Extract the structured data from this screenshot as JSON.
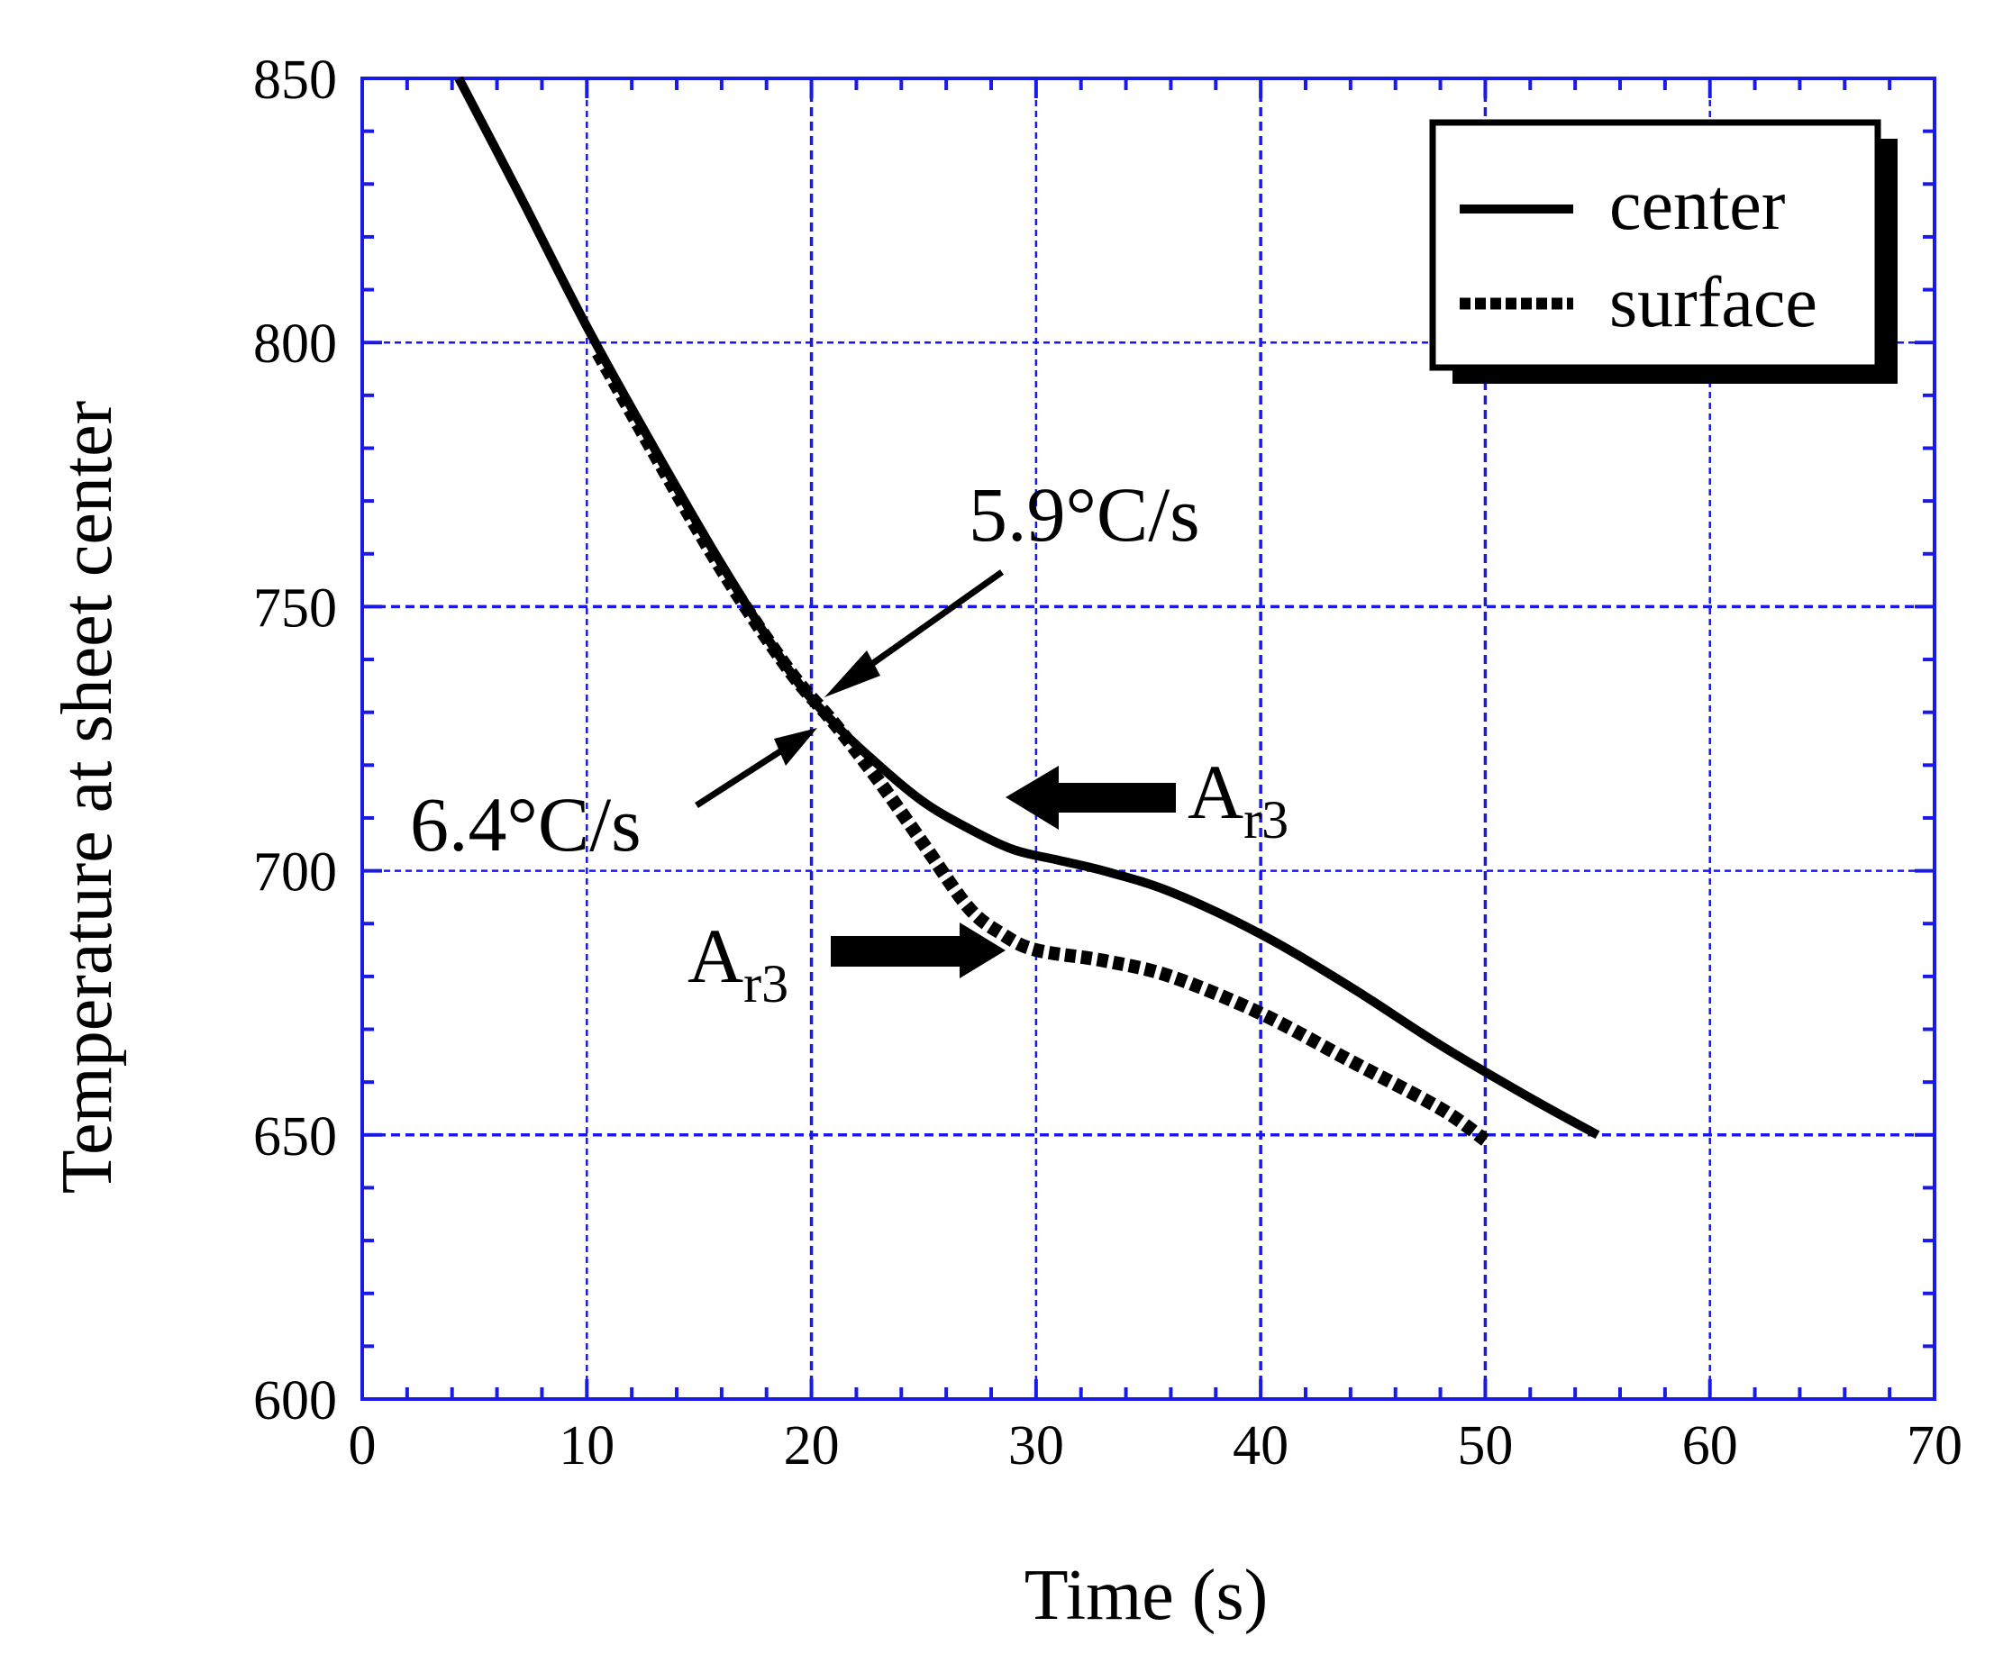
{
  "chart_data": {
    "type": "line",
    "xlabel": "Time (s)",
    "ylabel": "Temperature at sheet center",
    "xlim": [
      0,
      70
    ],
    "ylim": [
      600,
      850
    ],
    "xticks": [
      0,
      10,
      20,
      30,
      40,
      50,
      60,
      70
    ],
    "yticks": [
      600,
      650,
      700,
      750,
      800,
      850
    ],
    "xtick_labels": [
      "0",
      "10",
      "20",
      "30",
      "40",
      "50",
      "60",
      "70"
    ],
    "ytick_labels": [
      "600",
      "650",
      "700",
      "750",
      "800",
      "850"
    ],
    "grid": true,
    "legend_position": "top-right",
    "series": [
      {
        "name": "center",
        "style": "solid",
        "color": "#000000",
        "x": [
          4.3,
          7,
          10,
          13,
          16,
          19,
          21,
          23,
          25,
          27,
          29,
          31,
          33,
          36,
          40,
          44,
          48,
          52,
          55
        ],
        "y": [
          850,
          828,
          803,
          780,
          758,
          738,
          728,
          720,
          713,
          708,
          704,
          702,
          700,
          696,
          688,
          678,
          667,
          657,
          650
        ]
      },
      {
        "name": "surface",
        "style": "dotted",
        "color": "#000000",
        "x": [
          10.5,
          13,
          16,
          19,
          21,
          23,
          25,
          27,
          28.5,
          30,
          33,
          36,
          40,
          44,
          48,
          50
        ],
        "y": [
          798,
          779,
          757,
          738,
          728,
          717,
          705,
          693,
          688,
          685,
          683,
          680,
          673,
          664,
          655,
          649
        ]
      }
    ],
    "annotations": {
      "rate_center": "5.9°C/s",
      "rate_surface": "6.4°C/s",
      "ar3_base": "A",
      "ar3_sub": "r3"
    }
  },
  "colors": {
    "axis_grid": "#1a1ae6",
    "series": "#000000"
  }
}
